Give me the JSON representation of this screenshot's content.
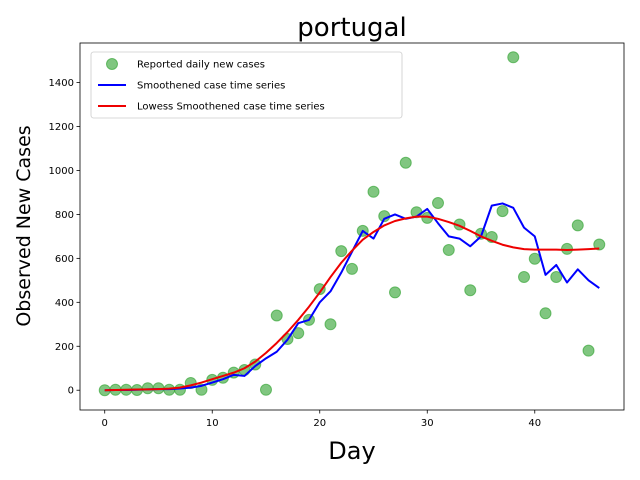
{
  "chart_data": {
    "type": "line",
    "title": "portugal",
    "xlabel": "Day",
    "ylabel": "Observed New Cases",
    "xlim": [
      -2.3,
      48.3
    ],
    "ylim": [
      -90,
      1580
    ],
    "xticks": [
      0,
      10,
      20,
      30,
      40
    ],
    "yticks": [
      0,
      200,
      400,
      600,
      800,
      1000,
      1200,
      1400
    ],
    "grid": false,
    "legend_position": "upper left",
    "series": [
      {
        "name": "Reported daily new cases",
        "kind": "scatter",
        "color": "#2ca02c",
        "x": [
          0,
          1,
          2,
          3,
          4,
          5,
          6,
          7,
          8,
          9,
          10,
          11,
          12,
          13,
          14,
          15,
          16,
          17,
          18,
          19,
          20,
          21,
          22,
          23,
          24,
          25,
          26,
          27,
          28,
          29,
          30,
          31,
          32,
          33,
          34,
          35,
          36,
          37,
          38,
          39,
          40,
          41,
          42,
          43,
          44,
          45,
          46
        ],
        "y": [
          0,
          2,
          2,
          1,
          9,
          9,
          2,
          2,
          33,
          2,
          47,
          57,
          80,
          92,
          117,
          2,
          340,
          233,
          260,
          320,
          460,
          300,
          633,
          552,
          725,
          903,
          792,
          445,
          1035,
          810,
          784,
          852,
          638,
          754,
          455,
          712,
          697,
          815,
          1515,
          515,
          598,
          350,
          515,
          643,
          750,
          180,
          663
        ]
      },
      {
        "name": "Smoothened case time series",
        "kind": "line",
        "color": "#0000ff",
        "x": [
          0,
          1,
          2,
          3,
          4,
          5,
          6,
          7,
          8,
          9,
          10,
          11,
          12,
          13,
          14,
          15,
          16,
          17,
          18,
          19,
          20,
          21,
          22,
          23,
          24,
          25,
          26,
          27,
          28,
          29,
          30,
          31,
          32,
          33,
          34,
          35,
          36,
          37,
          38,
          39,
          40,
          41,
          42,
          43,
          44,
          45,
          46
        ],
        "y": [
          0,
          1,
          1,
          2,
          4,
          5,
          5,
          8,
          12,
          20,
          35,
          50,
          70,
          65,
          110,
          145,
          175,
          230,
          305,
          320,
          400,
          450,
          535,
          630,
          725,
          690,
          780,
          800,
          780,
          790,
          825,
          760,
          700,
          690,
          655,
          700,
          840,
          850,
          830,
          740,
          700,
          525,
          570,
          490,
          550,
          500,
          465
        ]
      },
      {
        "name": "Lowess Smoothened case time series",
        "kind": "line",
        "color": "#ee0000",
        "x": [
          0,
          1,
          2,
          3,
          4,
          5,
          6,
          7,
          8,
          9,
          10,
          11,
          12,
          13,
          14,
          15,
          16,
          17,
          18,
          19,
          20,
          21,
          22,
          23,
          24,
          25,
          26,
          27,
          28,
          29,
          30,
          31,
          32,
          33,
          34,
          35,
          36,
          37,
          38,
          39,
          40,
          41,
          42,
          43,
          44,
          45,
          46
        ],
        "y": [
          0,
          1,
          2,
          3,
          4,
          5,
          7,
          12,
          22,
          35,
          50,
          65,
          80,
          100,
          130,
          170,
          215,
          265,
          320,
          380,
          445,
          515,
          580,
          635,
          685,
          720,
          750,
          770,
          782,
          790,
          790,
          780,
          765,
          748,
          725,
          700,
          680,
          662,
          650,
          642,
          640,
          640,
          640,
          638,
          640,
          642,
          645
        ]
      }
    ]
  }
}
